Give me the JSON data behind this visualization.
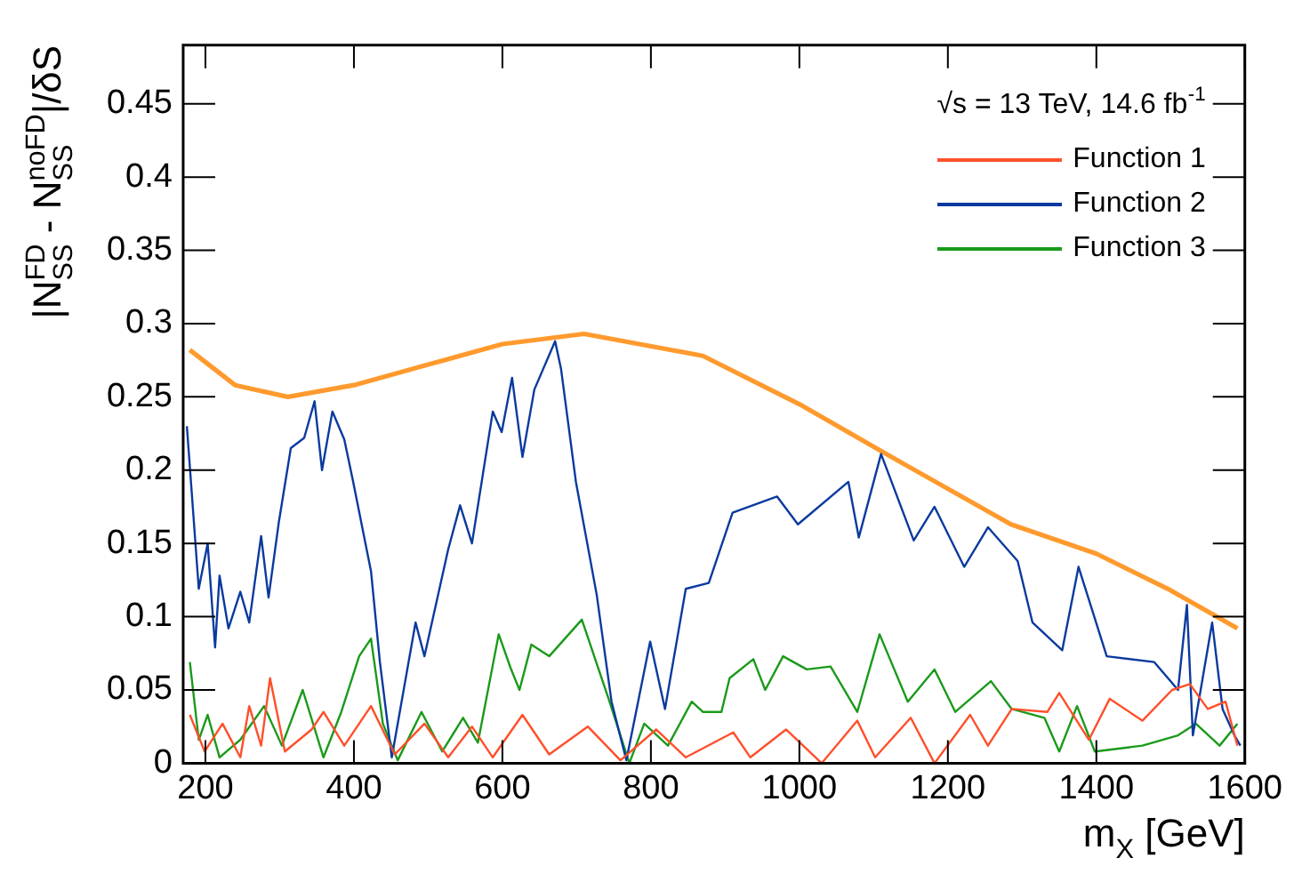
{
  "chart_data": {
    "type": "line",
    "xlabel": "m$_{X}$ [GeV]",
    "ylabel": "|N$_{SS}$$^{FD}$ - N$_{SS}$$^{noFD}$|/δS",
    "annotations": [
      "√s = 13 TeV, 14.6 fb$^{-1}$"
    ],
    "legend": "top right",
    "xlim": [
      170,
      1600
    ],
    "xticks": [
      200,
      400,
      600,
      800,
      1000,
      1200,
      1400,
      1600
    ],
    "ylim": [
      0,
      0.49
    ],
    "yticks": [
      0,
      0.05,
      0.1,
      0.15,
      0.2,
      0.25,
      0.3,
      0.35,
      0.4,
      0.45
    ],
    "series": [
      {
        "name": "Function 1",
        "color": "#ff4f2a",
        "x": [
          179,
          199,
          223,
          247,
          259,
          275,
          287,
          307,
          343,
          359,
          387,
          423,
          455,
          495,
          527,
          559,
          587,
          627,
          663,
          715,
          759,
          807,
          847,
          911,
          934,
          982,
          1030,
          1078,
          1102,
          1150,
          1182,
          1230,
          1254,
          1286,
          1334,
          1350,
          1390,
          1418,
          1462,
          1502,
          1526,
          1550,
          1574,
          1590
        ],
        "values": [
          0.033,
          0.008,
          0.027,
          0.004,
          0.039,
          0.012,
          0.058,
          0.008,
          0.023,
          0.035,
          0.012,
          0.039,
          0.006,
          0.027,
          0.004,
          0.025,
          0.004,
          0.033,
          0.006,
          0.025,
          0.002,
          0.023,
          0.004,
          0.021,
          0.004,
          0.023,
          0.0,
          0.029,
          0.004,
          0.031,
          0.0,
          0.033,
          0.012,
          0.037,
          0.035,
          0.048,
          0.016,
          0.044,
          0.029,
          0.05,
          0.054,
          0.037,
          0.042,
          0.012
        ]
      },
      {
        "name": "Function 2",
        "color": "#0a3a9e",
        "x": [
          175,
          191,
          203,
          213,
          219,
          231,
          247,
          259,
          275,
          285,
          299,
          315,
          333,
          347,
          357,
          371,
          387,
          399,
          423,
          435,
          451,
          483,
          495,
          527,
          543,
          559,
          587,
          599,
          613,
          627,
          643,
          671,
          679,
          699,
          727,
          747,
          767,
          799,
          819,
          847,
          878,
          910,
          970,
          998,
          1066,
          1080,
          1110,
          1154,
          1182,
          1222,
          1254,
          1294,
          1314,
          1354,
          1376,
          1414,
          1478,
          1510,
          1522,
          1530,
          1556,
          1570,
          1586,
          1594
        ],
        "values": [
          0.23,
          0.119,
          0.15,
          0.079,
          0.128,
          0.092,
          0.117,
          0.096,
          0.155,
          0.113,
          0.165,
          0.215,
          0.222,
          0.247,
          0.2,
          0.24,
          0.221,
          0.192,
          0.131,
          0.069,
          0.004,
          0.096,
          0.073,
          0.146,
          0.176,
          0.15,
          0.24,
          0.226,
          0.263,
          0.209,
          0.255,
          0.288,
          0.269,
          0.192,
          0.115,
          0.042,
          0.002,
          0.083,
          0.037,
          0.119,
          0.123,
          0.171,
          0.182,
          0.163,
          0.192,
          0.154,
          0.211,
          0.152,
          0.175,
          0.134,
          0.161,
          0.138,
          0.096,
          0.077,
          0.134,
          0.073,
          0.069,
          0.05,
          0.108,
          0.019,
          0.096,
          0.037,
          0.019,
          0.012
        ]
      },
      {
        "name": "Function 3",
        "color": "#1a9a1a",
        "x": [
          179,
          191,
          203,
          219,
          247,
          279,
          303,
          331,
          359,
          383,
          407,
          423,
          439,
          459,
          491,
          519,
          547,
          567,
          595,
          611,
          623,
          639,
          663,
          707,
          743,
          771,
          791,
          823,
          855,
          870,
          895,
          906,
          938,
          954,
          978,
          1010,
          1042,
          1078,
          1108,
          1146,
          1182,
          1210,
          1258,
          1286,
          1330,
          1350,
          1374,
          1398,
          1462,
          1510,
          1534,
          1566,
          1590
        ],
        "values": [
          0.069,
          0.016,
          0.033,
          0.004,
          0.016,
          0.039,
          0.012,
          0.05,
          0.004,
          0.035,
          0.073,
          0.085,
          0.027,
          0.002,
          0.035,
          0.008,
          0.031,
          0.014,
          0.088,
          0.065,
          0.05,
          0.081,
          0.073,
          0.098,
          0.044,
          0.0,
          0.027,
          0.012,
          0.042,
          0.035,
          0.035,
          0.058,
          0.071,
          0.05,
          0.073,
          0.064,
          0.066,
          0.035,
          0.088,
          0.042,
          0.064,
          0.035,
          0.056,
          0.037,
          0.031,
          0.008,
          0.039,
          0.008,
          0.012,
          0.019,
          0.027,
          0.012,
          0.027
        ]
      },
      {
        "color": "#ff9a2e",
        "x": [
          179,
          240,
          311,
          400,
          500,
          600,
          710,
          870,
          1000,
          1110,
          1285,
          1400,
          1500,
          1590
        ],
        "values": [
          0.282,
          0.258,
          0.25,
          0.258,
          0.272,
          0.286,
          0.293,
          0.278,
          0.245,
          0.213,
          0.163,
          0.143,
          0.118,
          0.092
        ]
      }
    ]
  }
}
